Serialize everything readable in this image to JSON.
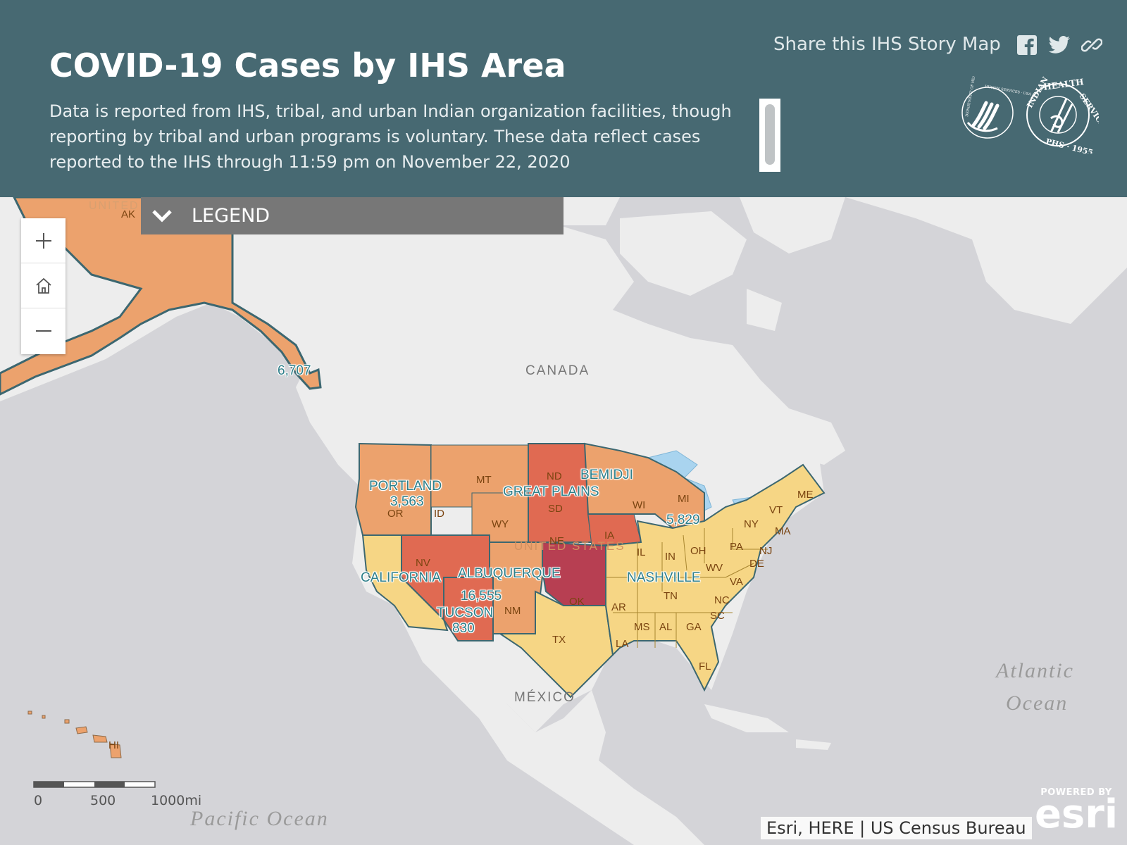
{
  "header": {
    "title": "COVID-19 Cases by IHS Area",
    "description": "Data is reported from IHS, tribal, and urban Indian organization facilities, though reporting by tribal and urban programs is voluntary. These data reflect cases reported to the IHS through 11:59 pm on November 22, 2020",
    "share_label": "Share this IHS Story Map",
    "share_icons": [
      "facebook-icon",
      "twitter-icon",
      "link-icon"
    ]
  },
  "logo": {
    "name": "ihs-hhs-logos"
  },
  "legend": {
    "label": "LEGEND"
  },
  "zoom": {
    "in_icon": "plus-icon",
    "home_icon": "home-icon",
    "out_icon": "minus-icon"
  },
  "map": {
    "basemap_labels": {
      "canada": "CANADA",
      "mexico": "MÉXICO",
      "atlantic_1": "Atlantic",
      "atlantic_2": "Ocean",
      "pacific": "Pacific Ocean",
      "united_states": "UNITED STATES",
      "alaska_fragment": "UNITED"
    },
    "areas": [
      {
        "name": "ALASKA",
        "cases": "6,707"
      },
      {
        "name": "PORTLAND",
        "cases": "3,563"
      },
      {
        "name": "GREAT PLAINS",
        "cases": ""
      },
      {
        "name": "BEMIDJI",
        "cases": "5,829"
      },
      {
        "name": "CALIFORNIA",
        "cases": ""
      },
      {
        "name": "ALBUQUERQUE",
        "cases": "16,555"
      },
      {
        "name": "TUCSON",
        "cases": "830"
      },
      {
        "name": "NASHVILLE",
        "cases": ""
      }
    ],
    "states": [
      "AK",
      "OR",
      "ID",
      "MT",
      "WY",
      "ND",
      "SD",
      "NE",
      "IA",
      "WI",
      "MI",
      "NV",
      "OK",
      "NM",
      "TX",
      "AR",
      "LA",
      "MS",
      "AL",
      "GA",
      "FL",
      "SC",
      "NC",
      "TN",
      "VA",
      "WV",
      "OH",
      "IN",
      "IL",
      "PA",
      "NY",
      "VT",
      "ME",
      "MA",
      "NJ",
      "DE",
      "HI"
    ],
    "colors": {
      "ocean": "#d4d4d8",
      "land": "#ededed",
      "low": "#f6d685",
      "mid": "#eca26d",
      "high": "#e06a52",
      "highest": "#b73f52",
      "outline": "#3c6770"
    }
  },
  "scale": {
    "labels": [
      "0",
      "500",
      "1000mi"
    ]
  },
  "attribution": "Esri, HERE | US Census Bureau",
  "esri": {
    "powered": "POWERED BY",
    "name": "esri"
  }
}
